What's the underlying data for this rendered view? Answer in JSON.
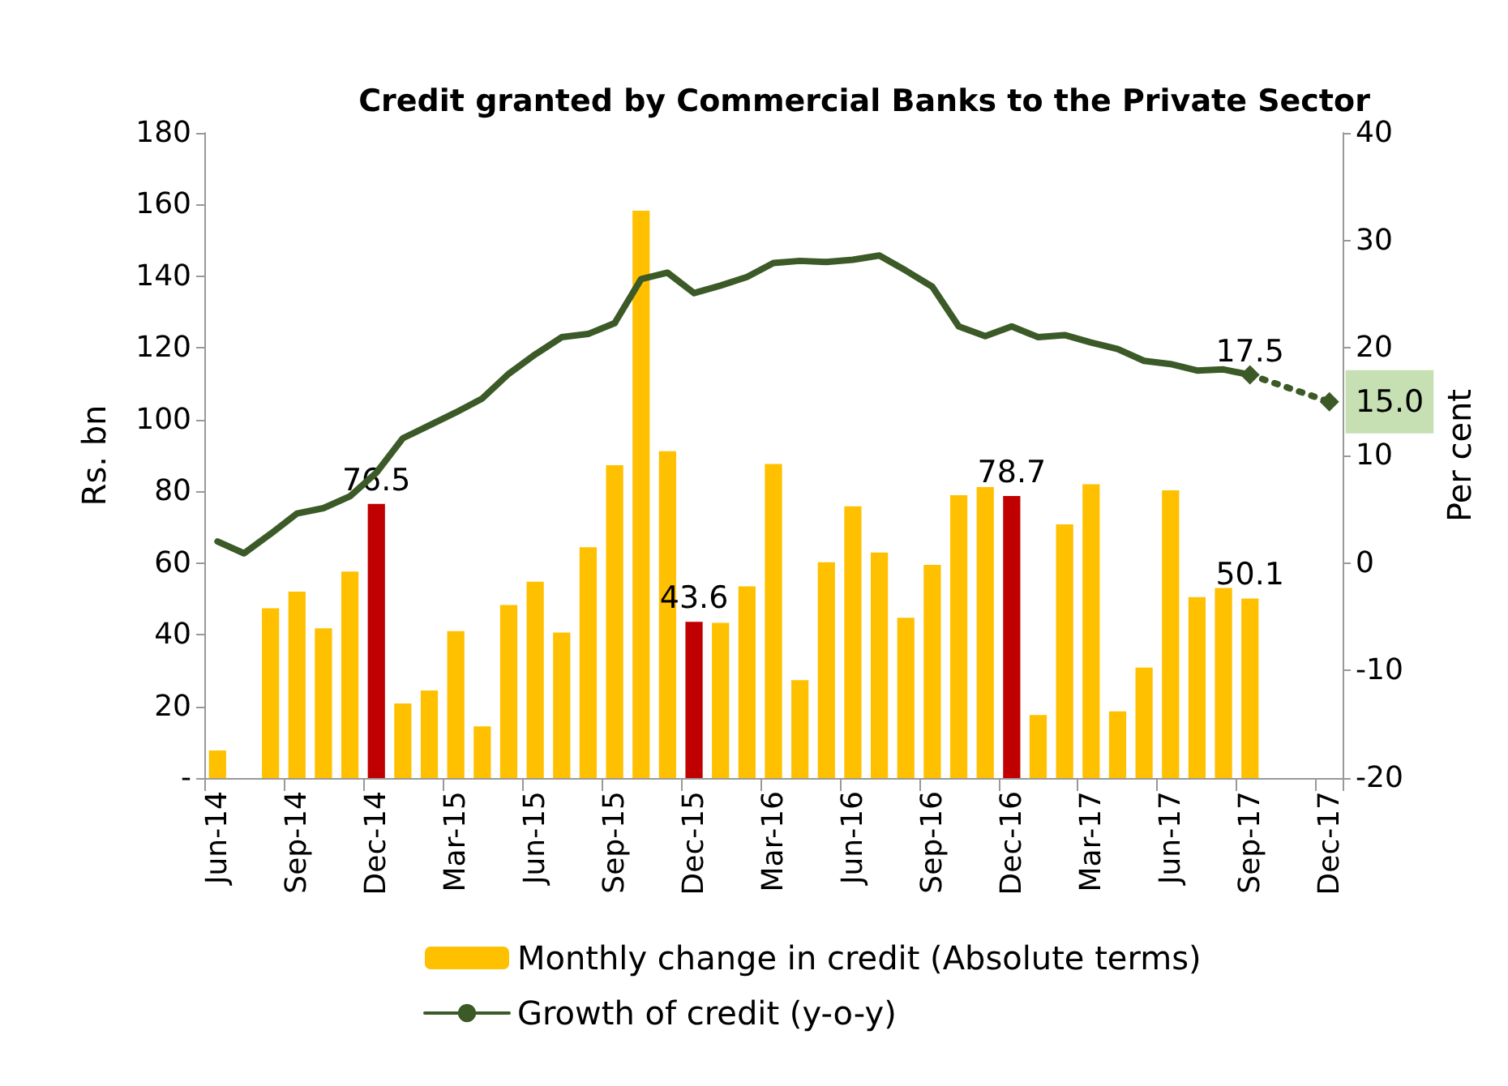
{
  "chart_data": {
    "type": "bar",
    "title": "Credit granted by Commercial Banks to the Private Sector",
    "ylabel": "Rs. bn",
    "y2label": "Per cent",
    "categories": [
      "Jun-14",
      null,
      null,
      "Sep-14",
      null,
      null,
      "Dec-14",
      null,
      null,
      "Mar-15",
      null,
      null,
      "Jun-15",
      null,
      null,
      "Sep-15",
      null,
      null,
      "Dec-15",
      null,
      null,
      "Mar-16",
      null,
      null,
      "Jun-16",
      null,
      null,
      "Sep-16",
      null,
      null,
      "Dec-16",
      null,
      null,
      "Mar-17",
      null,
      null,
      "Jun-17",
      null,
      null,
      "Sep-17",
      null,
      null,
      "Dec-17"
    ],
    "series": [
      {
        "name": "Monthly change in credit (Absolute terms)",
        "color": "#ffc000",
        "colors": [
          "#ffc000",
          "#ffc000",
          "#ffc000",
          "#ffc000",
          "#ffc000",
          "#ffc000",
          "#c00000",
          "#ffc000",
          "#ffc000",
          "#ffc000",
          "#ffc000",
          "#ffc000",
          "#ffc000",
          "#ffc000",
          "#ffc000",
          "#ffc000",
          "#ffc000",
          "#ffc000",
          "#c00000",
          "#ffc000",
          "#ffc000",
          "#ffc000",
          "#ffc000",
          "#ffc000",
          "#ffc000",
          "#ffc000",
          "#ffc000",
          "#ffc000",
          "#ffc000",
          "#ffc000",
          "#c00000",
          "#ffc000",
          "#ffc000",
          "#ffc000",
          "#ffc000",
          "#ffc000",
          "#ffc000",
          "#ffc000",
          "#ffc000",
          "#ffc000",
          null,
          null,
          null
        ],
        "values": [
          7.7,
          null,
          47.4,
          52,
          41.8,
          57.6,
          76.5,
          20.8,
          24.4,
          41,
          14.4,
          48.3,
          54.8,
          40.6,
          64.4,
          87.3,
          158.3,
          91.2,
          43.6,
          43.3,
          53.5,
          87.6,
          27.3,
          60.2,
          75.8,
          62.9,
          44.7,
          59.5,
          78.9,
          81.2,
          78.7,
          17.6,
          70.8,
          82,
          18.6,
          30.8,
          80.3,
          50.5,
          53,
          50.1,
          null,
          null,
          null
        ],
        "value_labels": [
          null,
          null,
          null,
          null,
          null,
          null,
          "76.5",
          null,
          null,
          null,
          null,
          null,
          null,
          null,
          null,
          null,
          null,
          null,
          "43.6",
          null,
          null,
          null,
          null,
          null,
          null,
          null,
          null,
          null,
          null,
          null,
          "78.7",
          null,
          null,
          null,
          null,
          null,
          null,
          null,
          null,
          "50.1",
          null,
          null,
          null
        ]
      },
      {
        "name": "Growth of credit (y-o-y)",
        "type": "line",
        "axis": "y2",
        "color": "#3b5a27",
        "line_style": "solid",
        "marker": "none",
        "values": [
          2.0,
          0.9,
          2.7,
          4.6,
          5.1,
          6.2,
          8.4,
          11.6,
          12.8,
          14.0,
          15.3,
          17.6,
          19.4,
          21.0,
          21.3,
          22.3,
          26.4,
          27.0,
          25.1,
          25.8,
          26.6,
          27.9,
          28.1,
          28.0,
          28.2,
          28.6,
          27.2,
          25.7,
          22.0,
          21.1,
          22.0,
          21.0,
          21.2,
          20.5,
          19.9,
          18.8,
          18.5,
          17.9,
          18.0,
          17.5,
          null,
          null,
          null
        ],
        "value_labels": [
          null,
          null,
          null,
          null,
          null,
          null,
          null,
          null,
          null,
          null,
          null,
          null,
          null,
          null,
          null,
          null,
          null,
          null,
          null,
          null,
          null,
          null,
          null,
          null,
          null,
          null,
          null,
          null,
          null,
          null,
          null,
          null,
          null,
          null,
          null,
          null,
          null,
          null,
          null,
          "17.5",
          null,
          null,
          null
        ]
      },
      {
        "type": "line",
        "axis": "y2",
        "color": "#3b5a27",
        "line_style": "dotted",
        "marker": "diamond",
        "values": [
          null,
          null,
          null,
          null,
          null,
          null,
          null,
          null,
          null,
          null,
          null,
          null,
          null,
          null,
          null,
          null,
          null,
          null,
          null,
          null,
          null,
          null,
          null,
          null,
          null,
          null,
          null,
          null,
          null,
          null,
          null,
          null,
          null,
          null,
          null,
          null,
          null,
          null,
          null,
          17.5,
          null,
          null,
          15.0
        ],
        "value_labels": [
          null,
          null,
          null,
          null,
          null,
          null,
          null,
          null,
          null,
          null,
          null,
          null,
          null,
          null,
          null,
          null,
          null,
          null,
          null,
          null,
          null,
          null,
          null,
          null,
          null,
          null,
          null,
          null,
          null,
          null,
          null,
          null,
          null,
          null,
          null,
          null,
          null,
          null,
          null,
          null,
          null,
          null,
          "15.0"
        ]
      }
    ],
    "ylim": [
      0,
      180
    ],
    "yticks": [
      {
        "value": 0,
        "label": "-"
      },
      20,
      40,
      60,
      80,
      100,
      120,
      140,
      160,
      180
    ],
    "y2lim": [
      -20,
      40
    ],
    "y2ticks": [
      -20,
      -10,
      0,
      10,
      20,
      30,
      40
    ],
    "grid": false,
    "legend": "bottom"
  }
}
